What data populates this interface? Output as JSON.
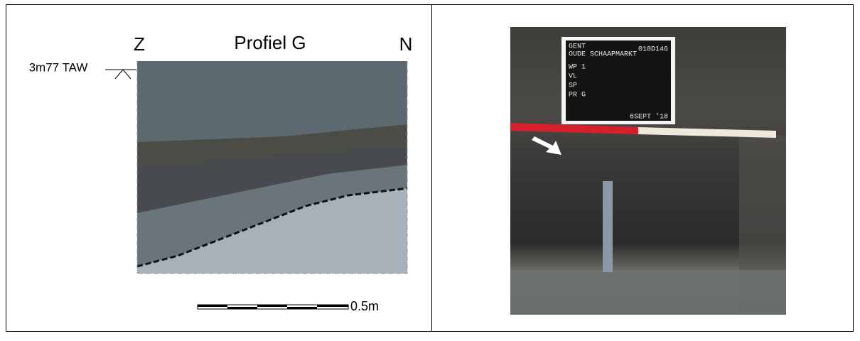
{
  "diagram": {
    "title": "Profiel G",
    "left_label": "Z",
    "right_label": "N",
    "level": "3m77 TAW",
    "scale": "0.5m"
  },
  "photo": {
    "board": {
      "site": "GENT",
      "code": "018D146",
      "street": "OUDE SCHAAPMARKT",
      "lines": [
        "WP 1",
        "VL",
        "SP",
        "PR G"
      ],
      "date": "6SEPT '18"
    }
  }
}
